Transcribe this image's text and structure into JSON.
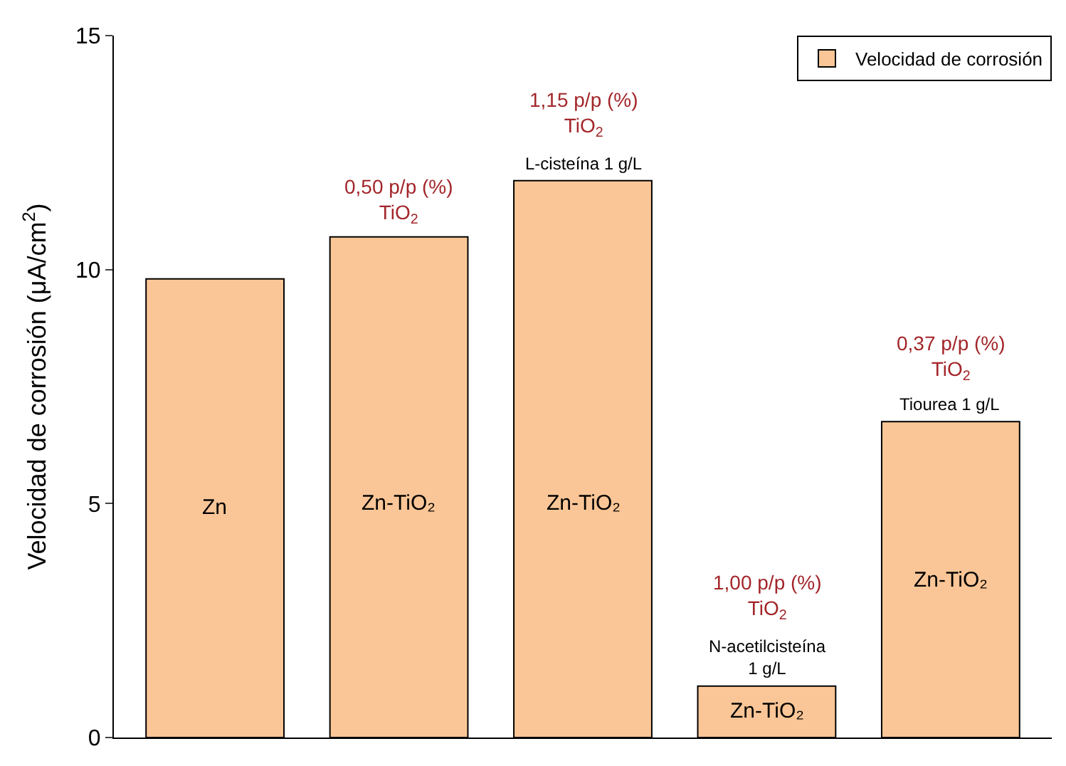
{
  "chart_data": {
    "type": "bar",
    "ylabel": "Velocidad de corrosión (μA/cm$^{2}$)",
    "categories": [
      "Zn",
      "Zn-TiO₂",
      "Zn-TiO₂",
      "Zn-TiO₂",
      "Zn-TiO₂"
    ],
    "series": [
      {
        "name": "Velocidad de corrosión",
        "color": "#fbc697",
        "values": [
          9.8,
          10.7,
          11.9,
          1.1,
          6.75
        ]
      }
    ],
    "ylim": [
      0,
      15
    ],
    "yticks": [
      0,
      5,
      10,
      15
    ],
    "legend": "top right",
    "annotations": [
      "0,50 p/p (%)\nTiO$_{2}$",
      "1,15 p/p (%)\nTiO$_{2}$",
      "L-cisteína 1 g/L",
      "1,00 p/p (%)\nTiO$_{2}$",
      "N-acetilcisteína\n1 g/L",
      "0,37 p/p (%)\nTiO$_{2}$",
      "Tiourea 1 g/L"
    ]
  }
}
